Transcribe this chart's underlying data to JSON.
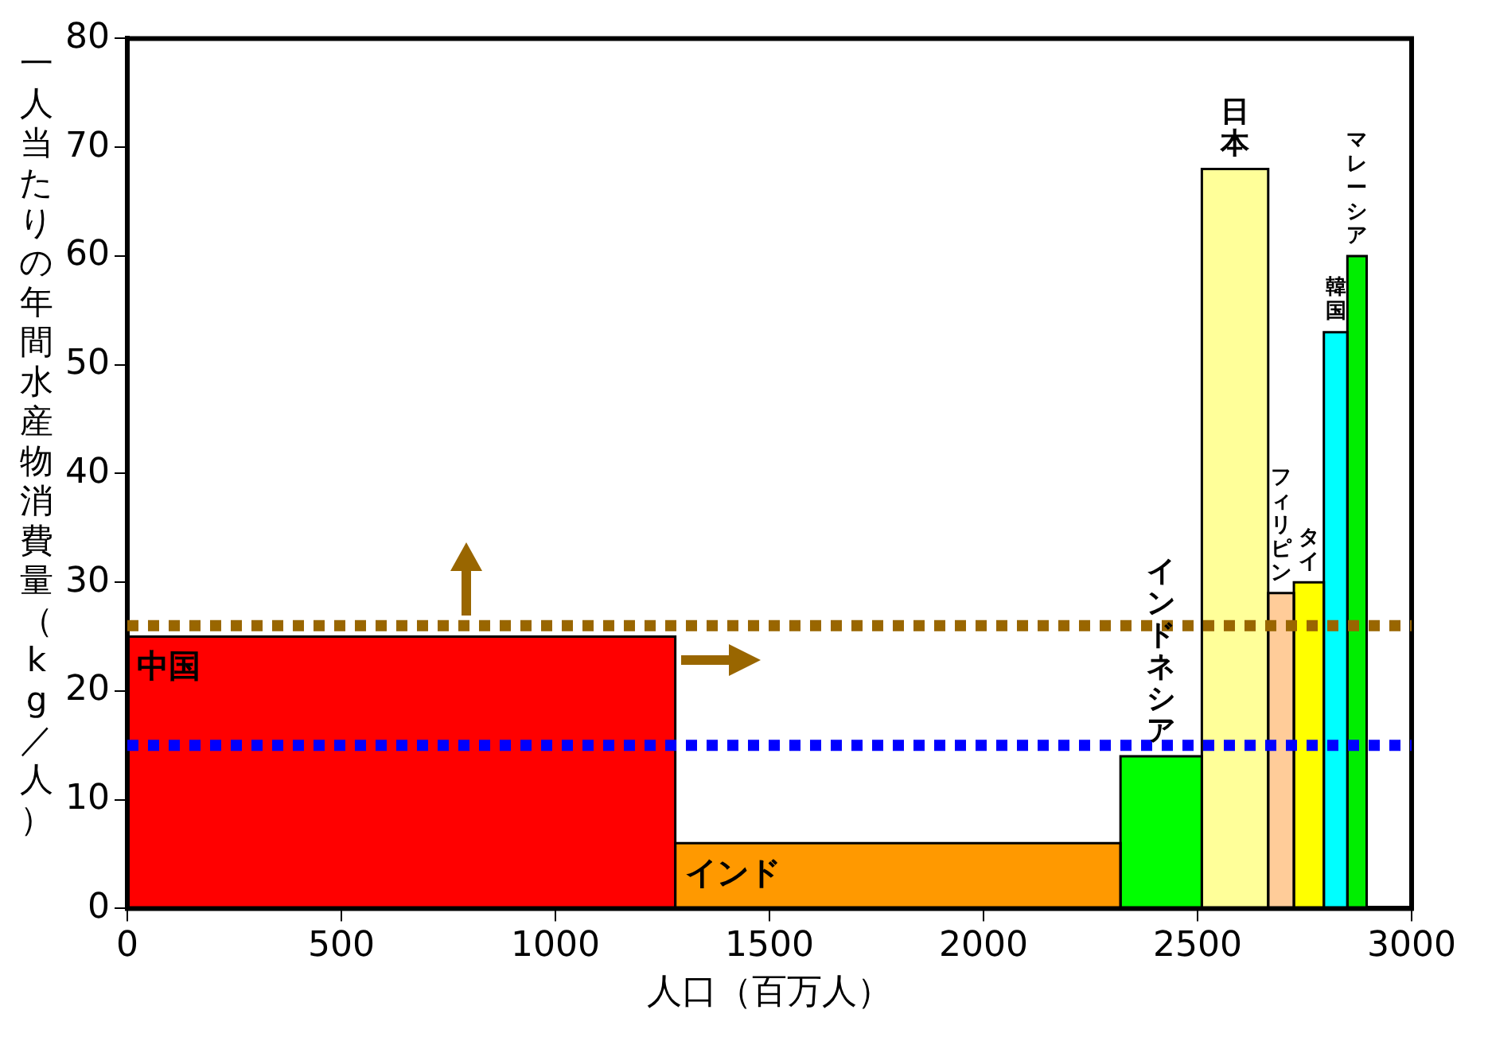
{
  "chart_data": {
    "type": "histogram",
    "bins": [
      0,
      1280,
      2320,
      2510,
      2665,
      2725,
      2795,
      2850,
      2895
    ],
    "values": [
      25,
      6,
      14,
      68,
      29,
      30,
      53,
      60
    ],
    "colors": [
      "#ff0000",
      "#ff9900",
      "#00ff00",
      "#ffff99",
      "#ffcc99",
      "#ffff00",
      "#00ffff",
      "#00ee00"
    ],
    "xlabel": "人口（百万人）",
    "ylabel": "一人当たりの年間水産物消費量（kg／人）",
    "xlim": [
      0,
      3000
    ],
    "xticks": [
      0,
      500,
      1000,
      1500,
      2000,
      2500,
      3000
    ],
    "ylim": [
      0,
      80
    ],
    "yticks": [
      0,
      10,
      20,
      30,
      40,
      50,
      60,
      70,
      80
    ],
    "grid": false,
    "legend": false,
    "ref_lines": [
      {
        "axis": "y",
        "value": 26,
        "color": "#996600",
        "line_style": "dotted"
      },
      {
        "axis": "y",
        "value": 15,
        "color": "#0000ff",
        "line_style": "dotted"
      }
    ],
    "annotations": [
      "中国",
      "インド",
      "インドネシア",
      "日本",
      "フィリピン",
      "タイ",
      "韓国",
      "マレーシア"
    ]
  }
}
